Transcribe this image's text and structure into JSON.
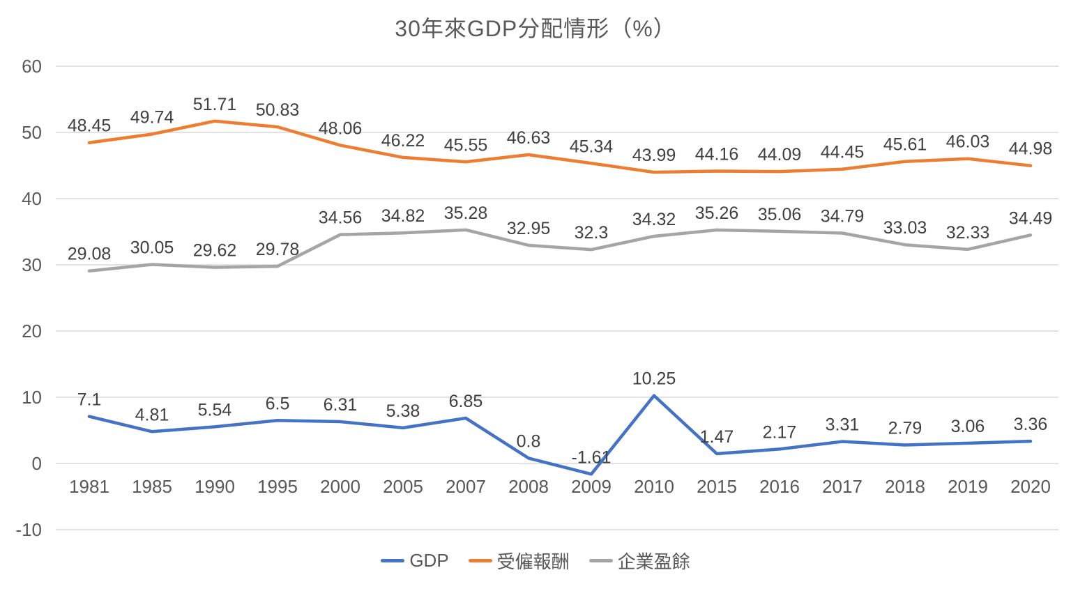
{
  "chart_data": {
    "type": "line",
    "title": "30年來GDP分配情形（%）",
    "categories": [
      "1981",
      "1985",
      "1990",
      "1995",
      "2000",
      "2005",
      "2007",
      "2008",
      "2009",
      "2010",
      "2015",
      "2016",
      "2017",
      "2018",
      "2019",
      "2020"
    ],
    "series": [
      {
        "name": "GDP",
        "color": "#4472c4",
        "values": [
          7.1,
          4.81,
          5.54,
          6.5,
          6.31,
          5.38,
          6.85,
          0.8,
          -1.61,
          10.25,
          1.47,
          2.17,
          3.31,
          2.79,
          3.06,
          3.36
        ]
      },
      {
        "name": "受僱報酬",
        "color": "#ed7d31",
        "values": [
          48.45,
          49.74,
          51.71,
          50.83,
          48.06,
          46.22,
          45.55,
          46.63,
          45.34,
          43.99,
          44.16,
          44.09,
          44.45,
          45.61,
          46.03,
          44.98
        ]
      },
      {
        "name": "企業盈餘",
        "color": "#a5a5a5",
        "values": [
          29.08,
          30.05,
          29.62,
          29.78,
          34.56,
          34.82,
          35.28,
          32.95,
          32.3,
          34.32,
          35.26,
          35.06,
          34.79,
          33.03,
          32.33,
          34.49
        ]
      }
    ],
    "y_ticks": [
      60,
      50,
      40,
      30,
      20,
      10,
      0,
      -10
    ],
    "ylim": [
      -10,
      60
    ],
    "grid": true,
    "data_labels": true,
    "legend_position": "bottom",
    "axis_color": "#595959",
    "gridline_color": "#d9d9d9",
    "data_label_color": "#404040"
  }
}
